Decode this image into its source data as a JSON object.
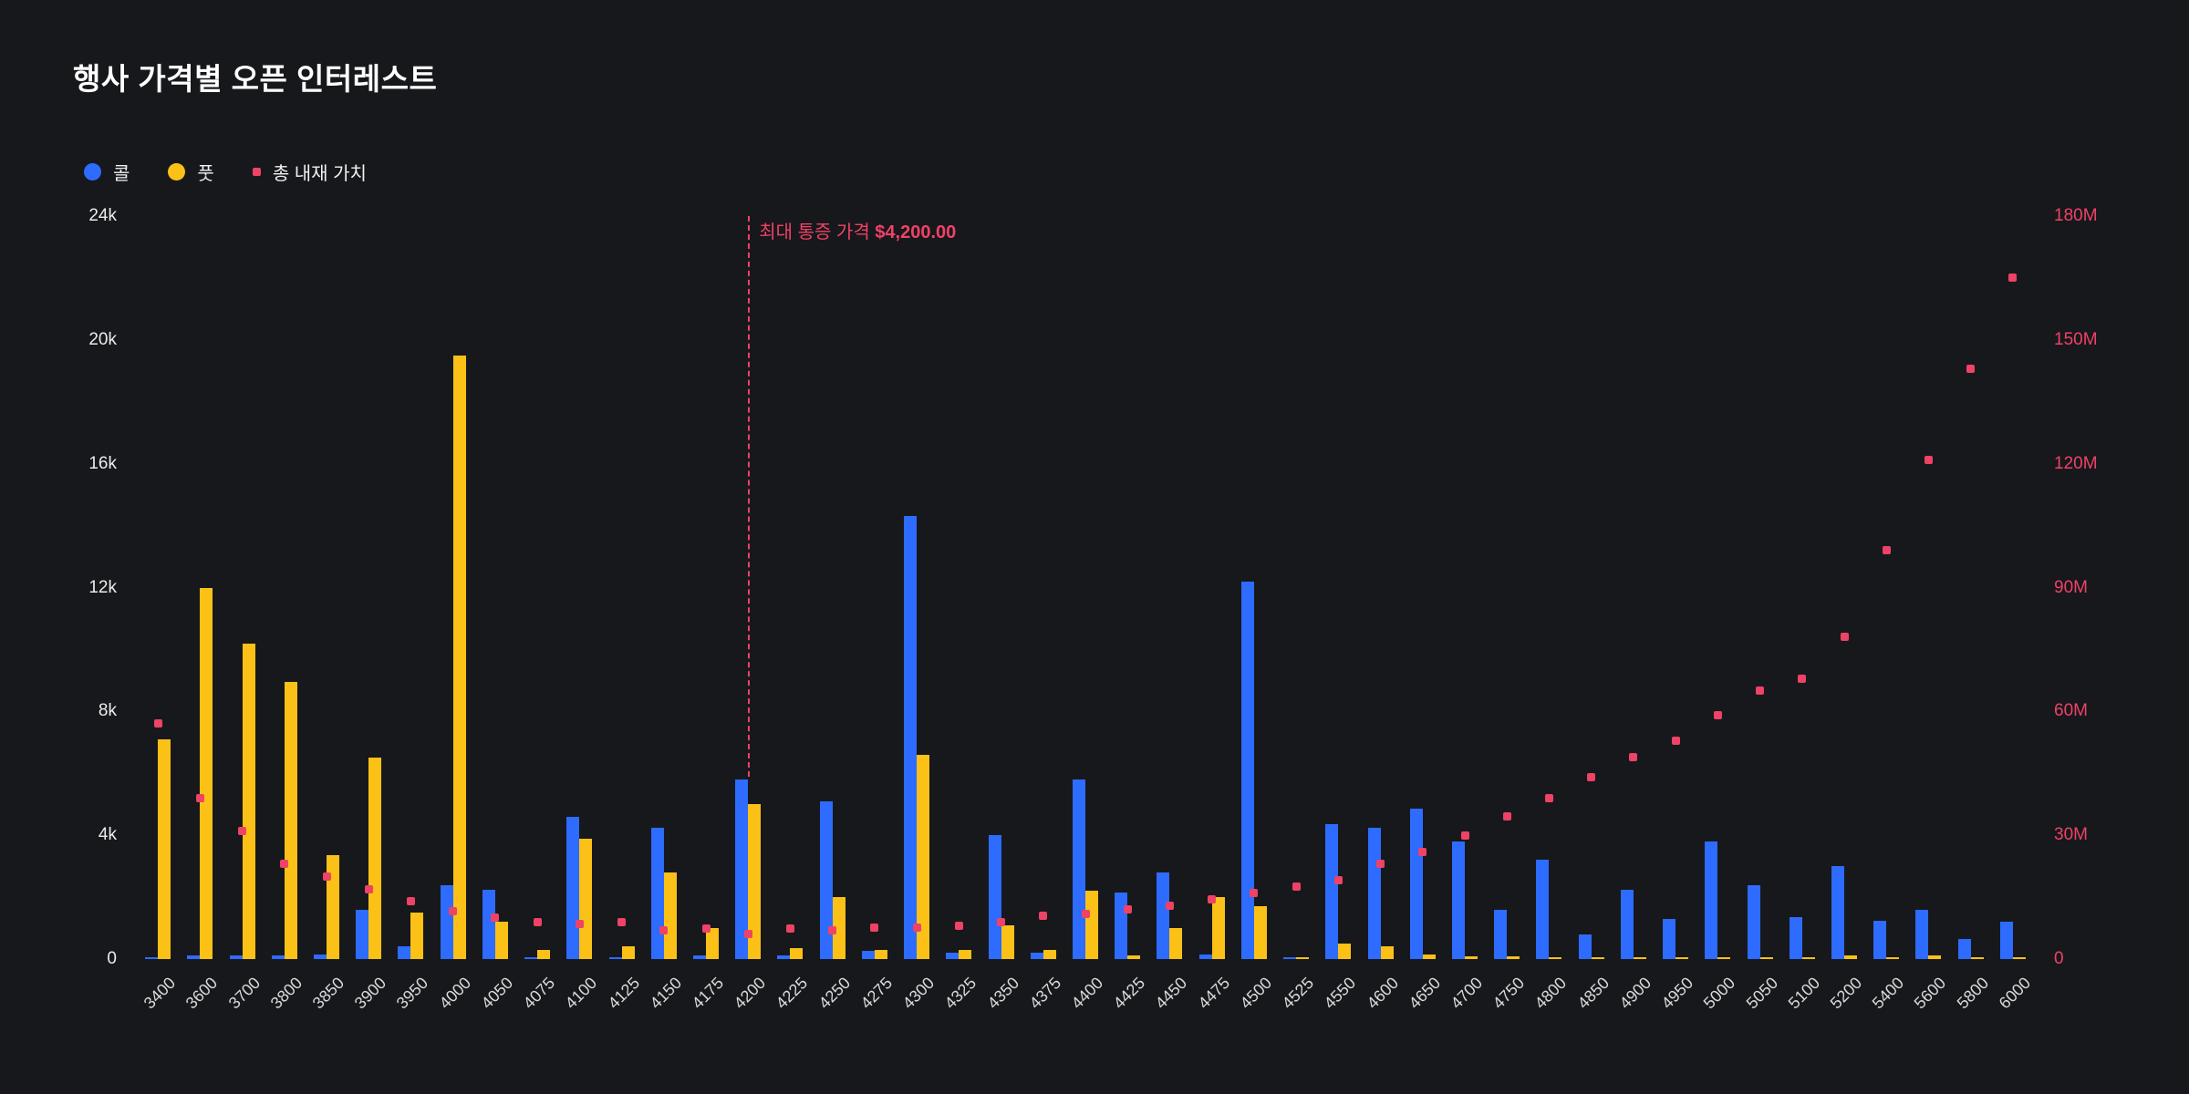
{
  "title": "행사 가격별 오픈 인터레스트",
  "colors": {
    "background": "#17181c",
    "call": "#2e6bff",
    "put": "#fcc117",
    "intrinsic": "#ee4266",
    "axis_text": "#ececec",
    "x_text": "#d9d9d9"
  },
  "legend": {
    "items": [
      {
        "id": "call",
        "label": "콜",
        "swatch": "circle",
        "color": "#2e6bff"
      },
      {
        "id": "put",
        "label": "풋",
        "swatch": "circle",
        "color": "#fcc117"
      },
      {
        "id": "intrinsic",
        "label": "총 내재 가치",
        "swatch": "square",
        "color": "#ee4266"
      }
    ]
  },
  "chart_data": {
    "type": "bar+scatter",
    "title": "행사 가격별 오픈 인터레스트",
    "categories": [
      "3400",
      "3600",
      "3700",
      "3800",
      "3850",
      "3900",
      "3950",
      "4000",
      "4050",
      "4075",
      "4100",
      "4125",
      "4150",
      "4175",
      "4200",
      "4225",
      "4250",
      "4275",
      "4300",
      "4325",
      "4350",
      "4375",
      "4400",
      "4425",
      "4450",
      "4475",
      "4500",
      "4525",
      "4550",
      "4600",
      "4650",
      "4700",
      "4750",
      "4800",
      "4850",
      "4900",
      "4950",
      "5000",
      "5050",
      "5100",
      "5200",
      "5400",
      "5600",
      "5800",
      "6000"
    ],
    "series": [
      {
        "name": "콜",
        "type": "bar",
        "axis": "left",
        "color": "#2e6bff",
        "values": [
          60,
          120,
          130,
          120,
          160,
          1600,
          420,
          2400,
          2250,
          40,
          4600,
          60,
          4250,
          120,
          5800,
          130,
          5100,
          280,
          14300,
          220,
          4000,
          220,
          5800,
          2150,
          2800,
          160,
          12200,
          60,
          4350,
          4250,
          4850,
          3800,
          1600,
          3200,
          800,
          2250,
          1300,
          3800,
          2400,
          1350,
          3000,
          1250,
          1600,
          650,
          1200
        ]
      },
      {
        "name": "풋",
        "type": "bar",
        "axis": "left",
        "color": "#fcc117",
        "values": [
          7100,
          12000,
          10200,
          8950,
          3350,
          6500,
          1500,
          19500,
          1200,
          300,
          3900,
          400,
          2800,
          1000,
          5000,
          350,
          2000,
          300,
          6600,
          300,
          1100,
          300,
          2200,
          120,
          1000,
          2000,
          1700,
          40,
          500,
          400,
          150,
          100,
          100,
          60,
          30,
          30,
          20,
          30,
          20,
          20,
          120,
          60,
          120,
          30,
          30
        ]
      },
      {
        "name": "총 내재 가치",
        "type": "scatter",
        "axis": "right",
        "unit": "M",
        "color": "#ee4266",
        "values": [
          57,
          39,
          31,
          23,
          20,
          17,
          14,
          11.5,
          10,
          9,
          8.5,
          9,
          7,
          7.5,
          6,
          7.5,
          7,
          7.6,
          7.6,
          8,
          9,
          10.5,
          11,
          12,
          13,
          14.5,
          16,
          17.5,
          19,
          23,
          26,
          30,
          34.5,
          39,
          44,
          49,
          53,
          59,
          65,
          68,
          78,
          99,
          121,
          143,
          165
        ]
      }
    ],
    "left_axis": {
      "ticks": [
        "0",
        "4k",
        "8k",
        "12k",
        "16k",
        "20k",
        "24k"
      ],
      "max": 24000
    },
    "right_axis": {
      "ticks": [
        "0",
        "30M",
        "60M",
        "90M",
        "120M",
        "150M",
        "180M"
      ],
      "max": 180
    },
    "grid": false,
    "legend_position": "top-left",
    "annotation": {
      "category": "4200",
      "line_end_value": 5900,
      "label_prefix": "최대 통증 가격",
      "label_amount": "$4,200.00"
    }
  }
}
